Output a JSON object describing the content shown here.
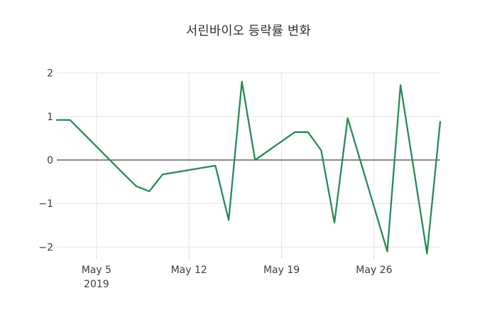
{
  "chart_data": {
    "type": "line",
    "title": "서린바이오 등락률 변화",
    "xlabel": "",
    "ylabel": "",
    "x_unit": "date, May 2019 (trading days)",
    "x_day_of_may": [
      2,
      3,
      7,
      8,
      9,
      10,
      13,
      14,
      15,
      16,
      17,
      20,
      21,
      22,
      23,
      24,
      27,
      28,
      29,
      30,
      31
    ],
    "values": [
      0.92,
      0.92,
      -0.3,
      -0.6,
      -0.72,
      -0.33,
      -0.18,
      -0.13,
      -1.38,
      1.8,
      0.0,
      0.64,
      0.64,
      0.22,
      -1.44,
      0.96,
      -2.1,
      1.72,
      -0.21,
      -2.15,
      0.88
    ],
    "series_name": "서린바이오 등락률",
    "xlim": [
      2,
      31
    ],
    "ylim": [
      -2.25,
      2.1
    ],
    "xticks": [
      {
        "day": 5,
        "lines": [
          "May 5",
          "2019"
        ]
      },
      {
        "day": 12,
        "lines": [
          "May 12"
        ]
      },
      {
        "day": 19,
        "lines": [
          "May 19"
        ]
      },
      {
        "day": 26,
        "lines": [
          "May 26"
        ]
      }
    ],
    "yticks": {
      "values": [
        2,
        1,
        0,
        -1,
        -2
      ],
      "labels": [
        "2",
        "1",
        "0",
        "−1",
        "−2"
      ]
    },
    "grid": true,
    "zeroline": true,
    "legend_position": "none",
    "colors": {
      "line": "#268b57",
      "grid": "#e9e9e9",
      "zeroline": "#444444",
      "tick_mark": "#d9d9d9",
      "text": "#3d3d3d",
      "title": "#2e2e2e",
      "background": "#ffffff"
    }
  }
}
